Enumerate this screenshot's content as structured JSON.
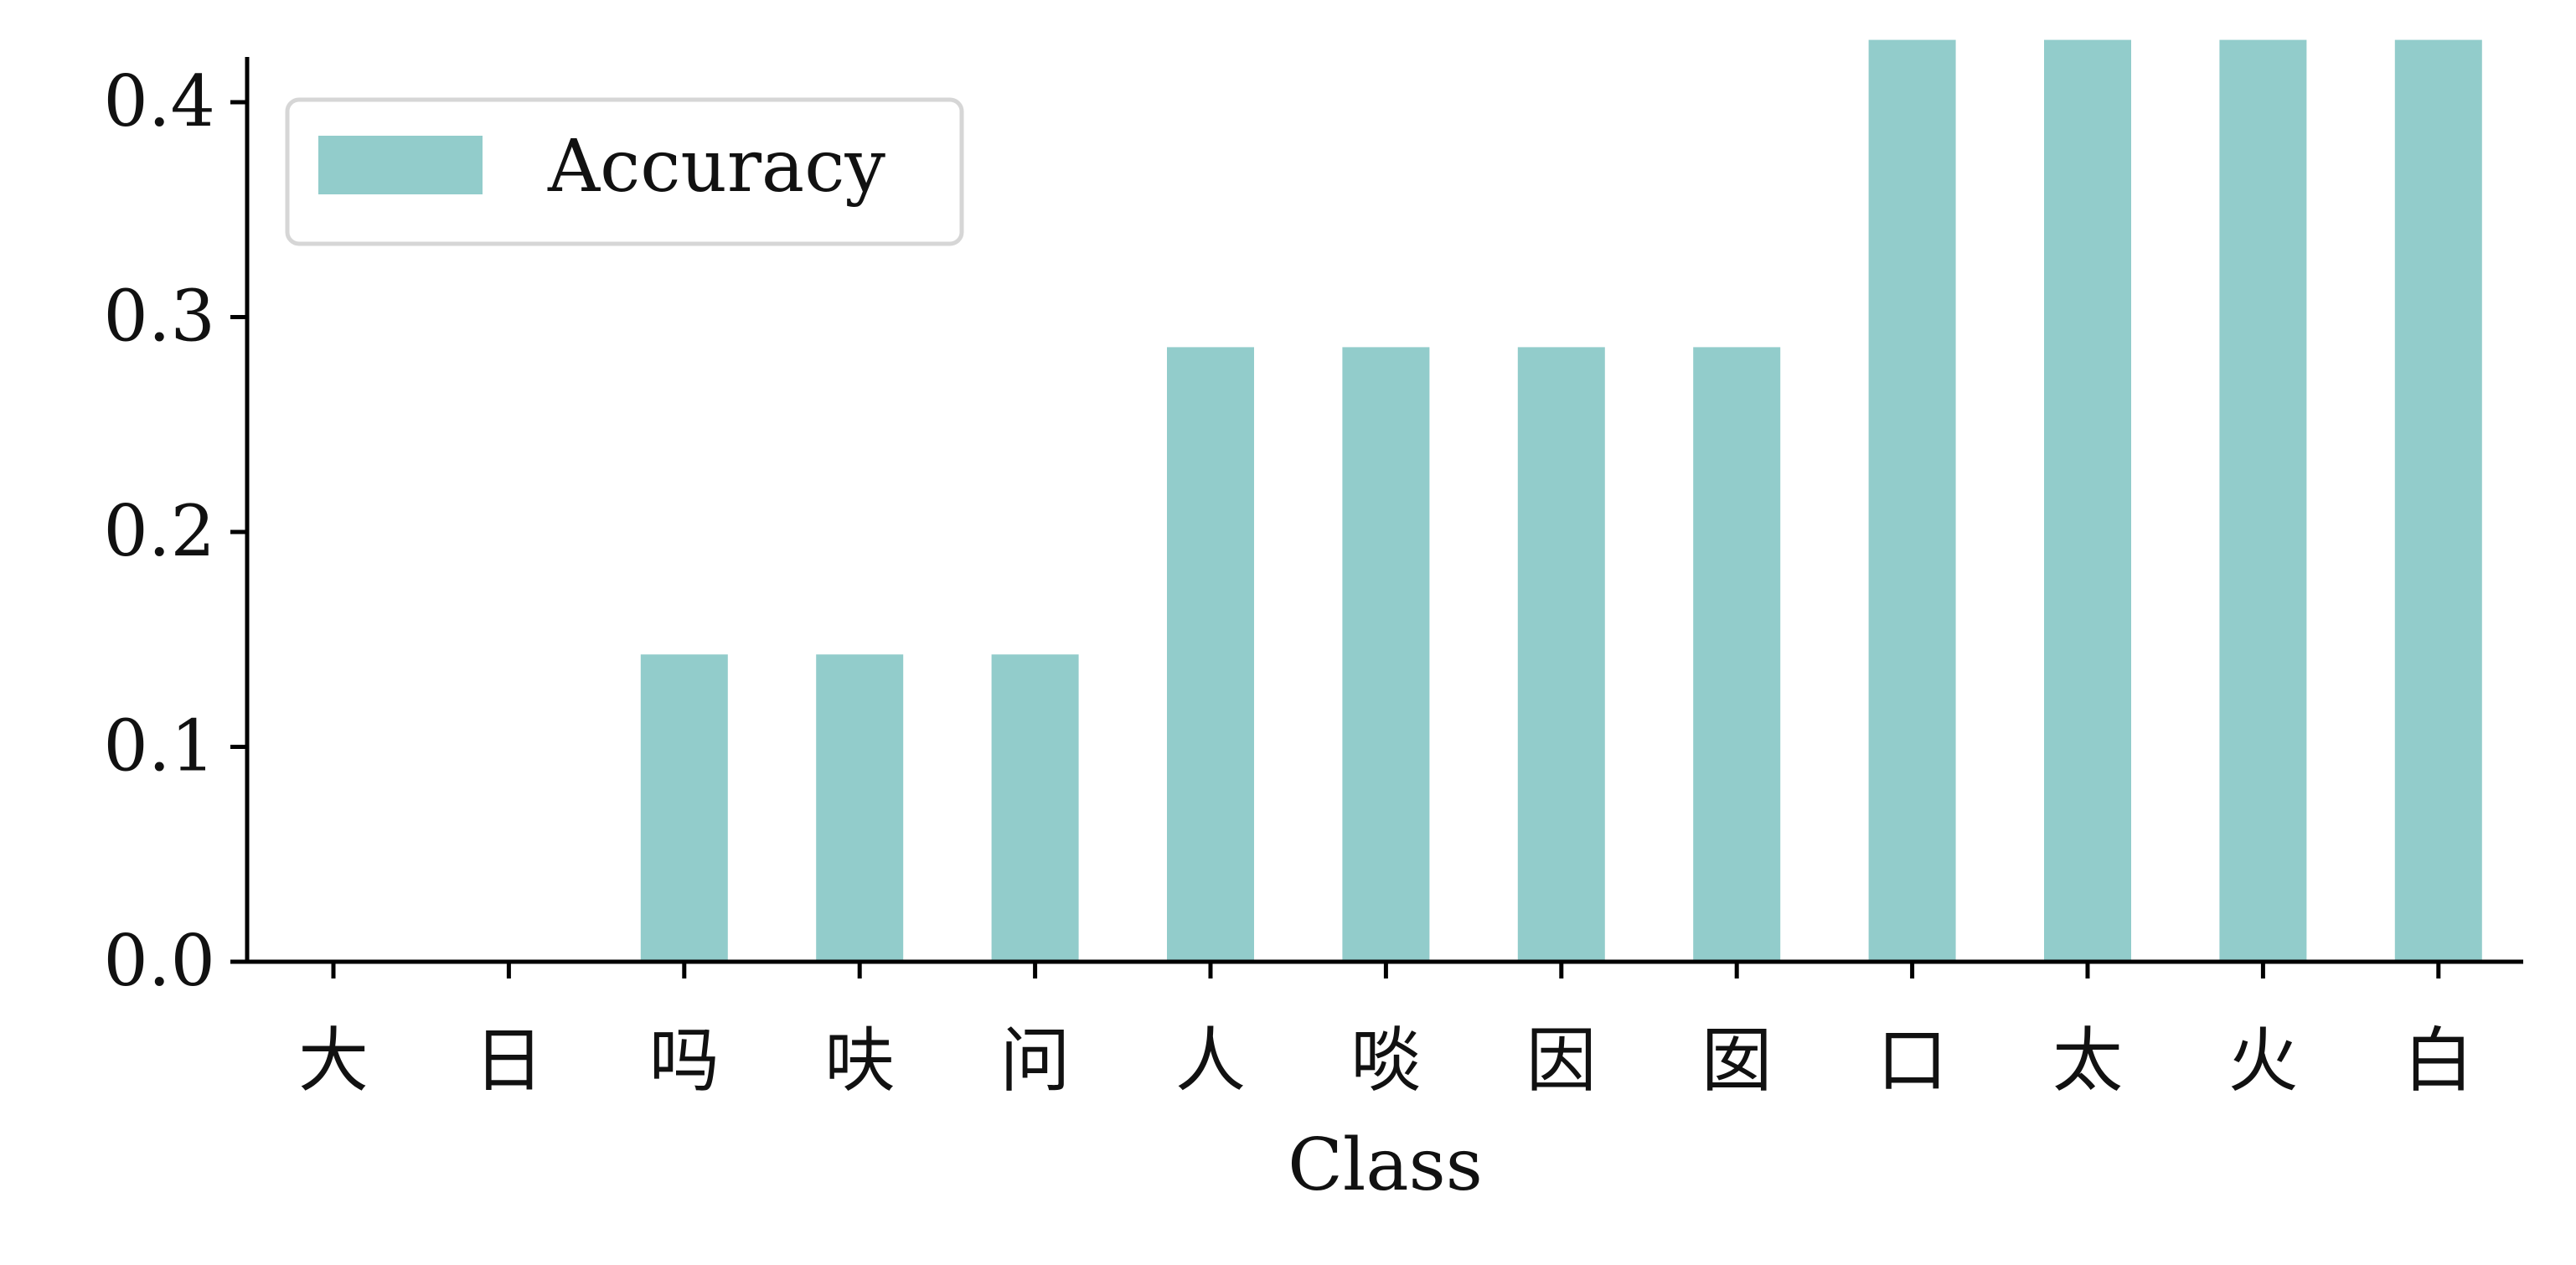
{
  "chart_data": {
    "type": "bar",
    "title": "",
    "xlabel": "Class",
    "ylabel": "",
    "categories": [
      "大",
      "日",
      "吗",
      "呋",
      "问",
      "人",
      "啖",
      "因",
      "囡",
      "口",
      "太",
      "火",
      "白"
    ],
    "series": [
      {
        "name": "Accuracy",
        "values": [
          0.0,
          0.0,
          0.143,
          0.143,
          0.143,
          0.286,
          0.286,
          0.286,
          0.286,
          0.429,
          0.429,
          0.429,
          0.429
        ],
        "color": "#92cccb"
      }
    ],
    "ylim": [
      0,
      0.45
    ],
    "yticks": [
      "0.0",
      "0.1",
      "0.2",
      "0.3",
      "0.4"
    ],
    "grid": false,
    "legend": "top-left"
  }
}
